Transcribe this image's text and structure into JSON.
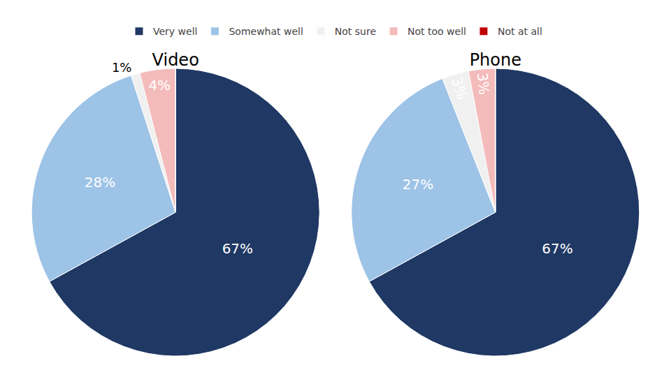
{
  "chart_data": [
    {
      "type": "pie",
      "title": "Video",
      "categories": [
        "Very well",
        "Somewhat well",
        "Not sure",
        "Not too well",
        "Not at all"
      ],
      "values": [
        67,
        28,
        1,
        4,
        0
      ],
      "value_labels": [
        "67%",
        "28%",
        "1%",
        "4%",
        null
      ],
      "colors": [
        "#1F3864",
        "#9DC3E6",
        "#F0F0F0",
        "#F4BBBB",
        "#C00000"
      ],
      "legend": "top"
    },
    {
      "type": "pie",
      "title": "Phone",
      "categories": [
        "Very well",
        "Somewhat well",
        "Not sure",
        "Not too well",
        "Not at all"
      ],
      "values": [
        67,
        27,
        3,
        3,
        0
      ],
      "value_labels": [
        "67%",
        "27%",
        "3%",
        "3%",
        null
      ],
      "colors": [
        "#1F3864",
        "#9DC3E6",
        "#F0F0F0",
        "#F4BBBB",
        "#C00000"
      ],
      "legend": "top"
    }
  ]
}
